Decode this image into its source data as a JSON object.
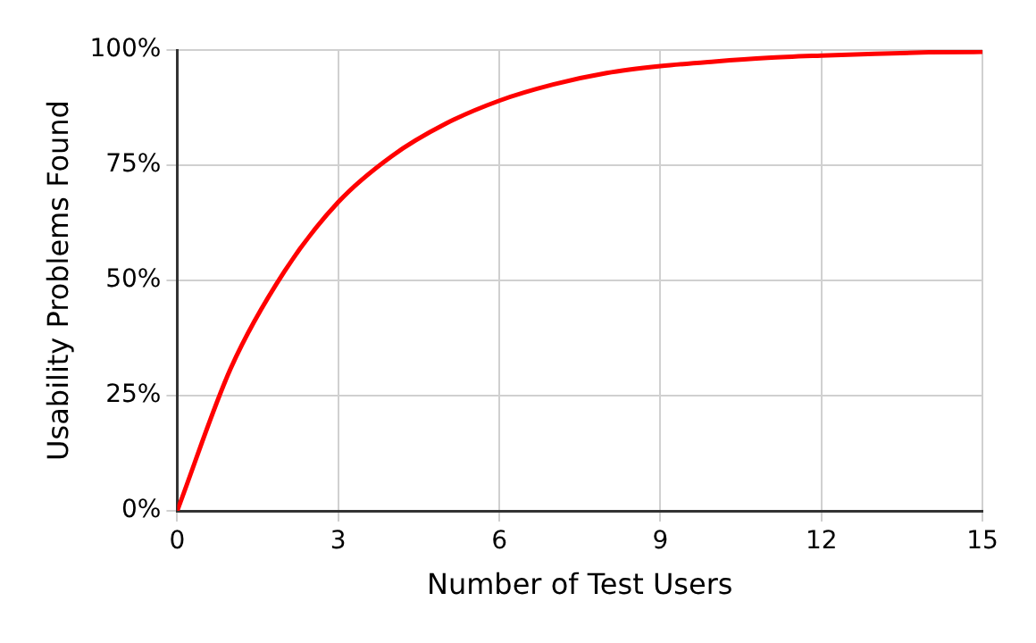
{
  "chart_data": {
    "type": "line",
    "xlabel": "Number of Test Users",
    "ylabel": "Usability Problems Found",
    "x": [
      0,
      1,
      2,
      3,
      4,
      5,
      6,
      7,
      8,
      9,
      10,
      11,
      12,
      13,
      14,
      15
    ],
    "series": [
      {
        "color": "#ff0000",
        "values": [
          0,
          31,
          52,
          67,
          77,
          84,
          89,
          92.5,
          95,
          96.5,
          97.5,
          98.3,
          98.8,
          99.2,
          99.5,
          99.6
        ]
      }
    ],
    "xlim": [
      0,
      15
    ],
    "xticks": [
      0,
      3,
      6,
      9,
      12,
      15
    ],
    "ylim": [
      0,
      100
    ],
    "yticks": [
      {
        "value": 0,
        "label": "0%"
      },
      {
        "value": 25,
        "label": "25%"
      },
      {
        "value": 50,
        "label": "50%"
      },
      {
        "value": 75,
        "label": "75%"
      },
      {
        "value": 100,
        "label": "100%"
      }
    ],
    "grid": true,
    "legend": false,
    "marker": "none",
    "line_style": "solid"
  }
}
